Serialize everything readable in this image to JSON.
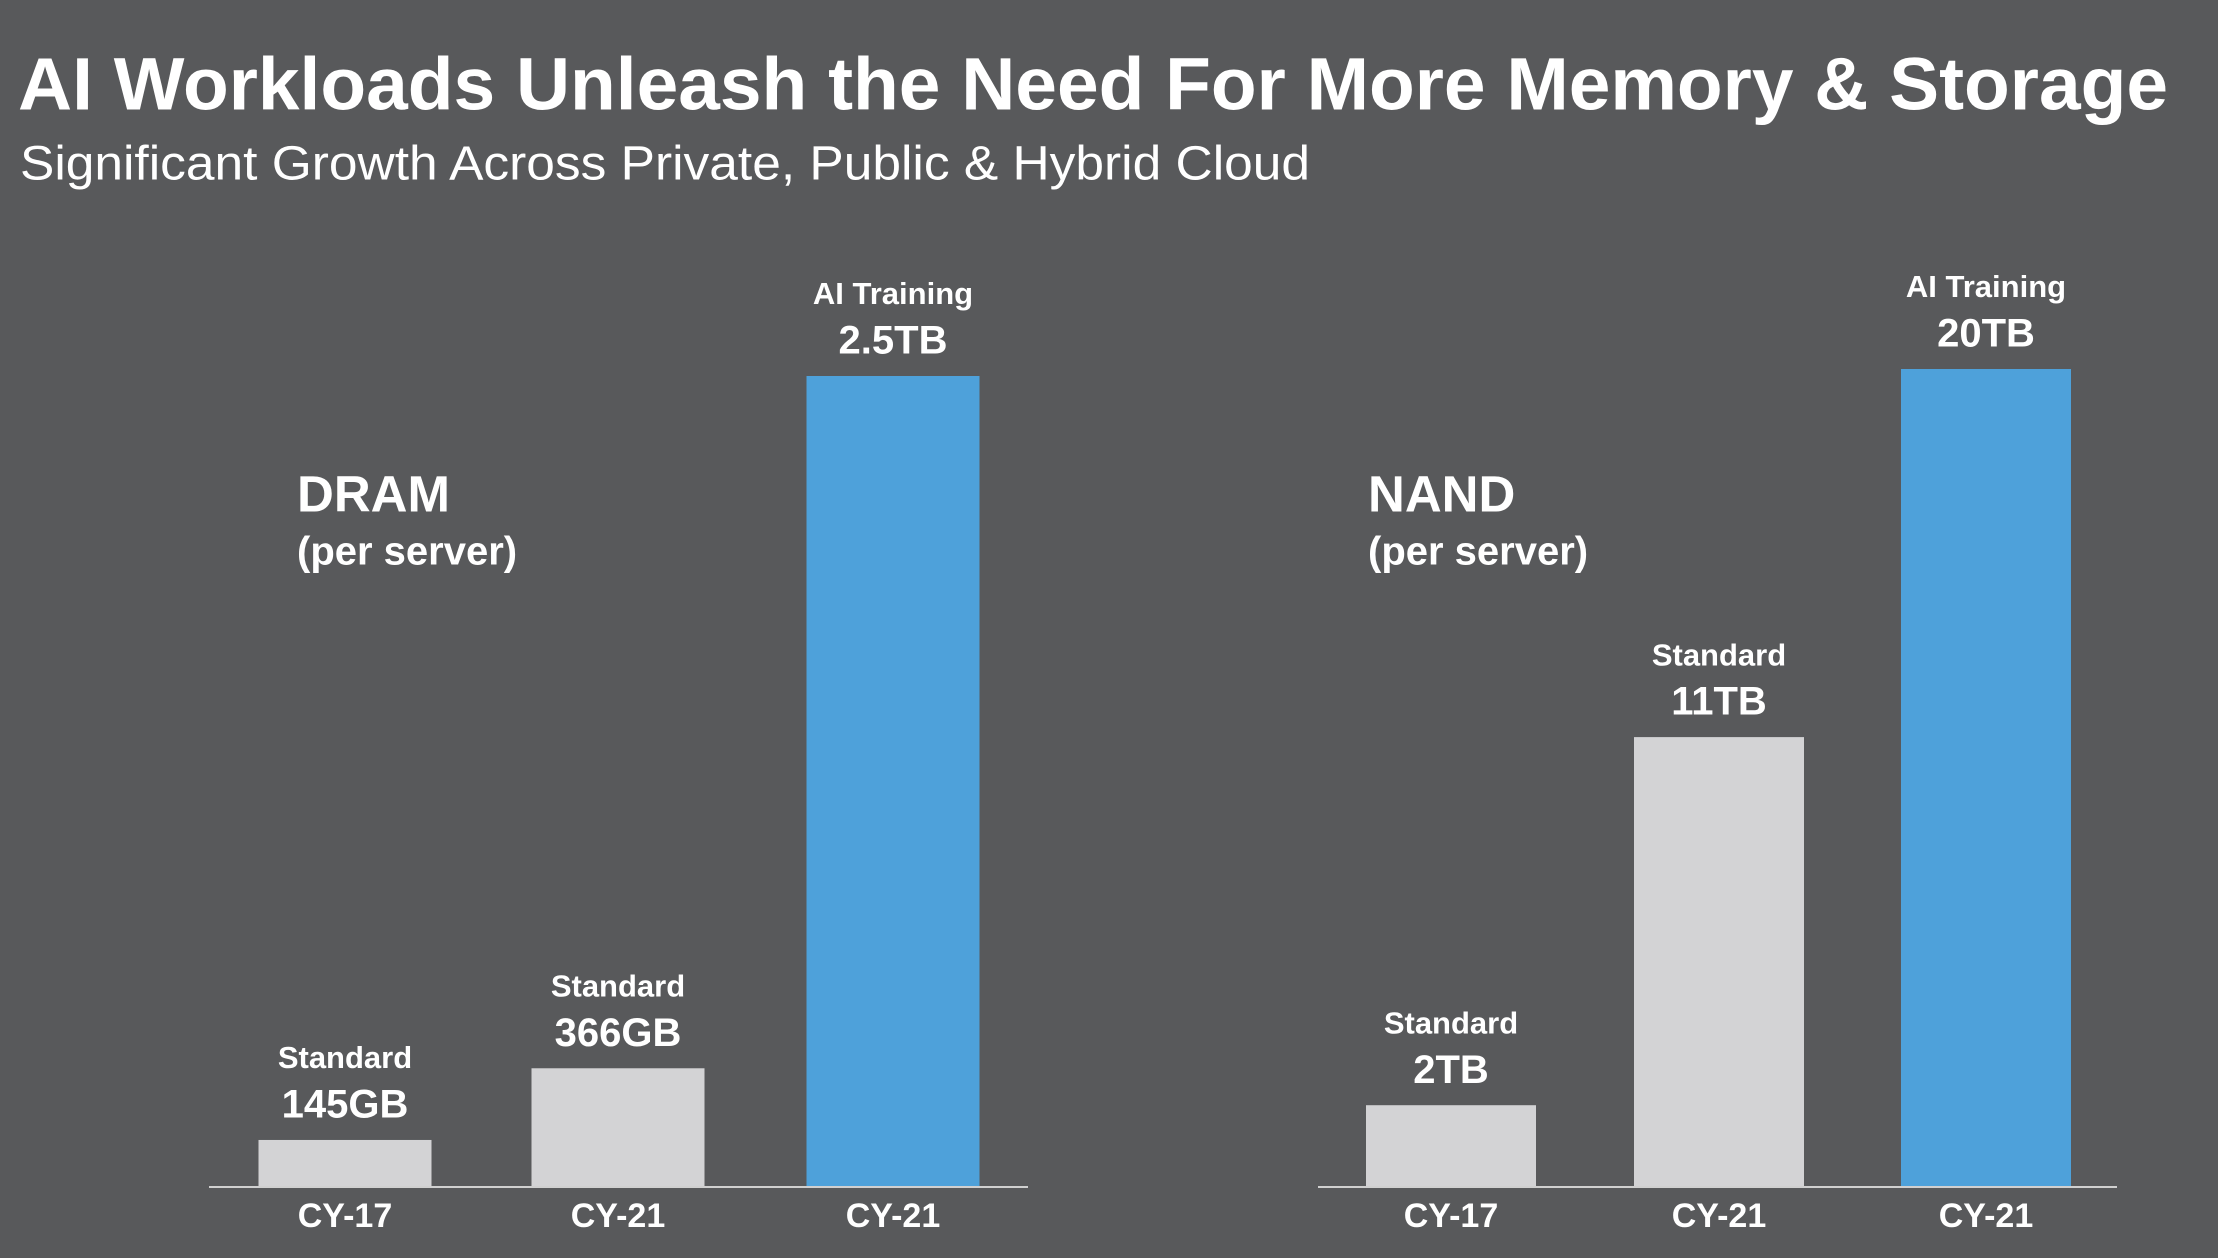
{
  "title": "AI Workloads Unleash the Need For More Memory & Storage",
  "subtitle": "Significant Growth Across Private, Public & Hybrid Cloud",
  "chart_data": [
    {
      "type": "bar",
      "title": "DRAM",
      "subtitle": "(per server)",
      "categories": [
        "CY-17",
        "CY-21",
        "CY-21"
      ],
      "bar_labels": [
        "Standard",
        "Standard",
        "AI Training"
      ],
      "values": [
        145,
        366,
        2500
      ],
      "value_labels": [
        "145GB",
        "366GB",
        "2.5TB"
      ],
      "colors": [
        "#d3d3d5",
        "#d3d3d5",
        "#4ea1da"
      ]
    },
    {
      "type": "bar",
      "title": "NAND",
      "subtitle": "(per server)",
      "categories": [
        "CY-17",
        "CY-21",
        "CY-21"
      ],
      "bar_labels": [
        "Standard",
        "Standard",
        "AI Training"
      ],
      "values": [
        2,
        11,
        20
      ],
      "value_labels": [
        "2TB",
        "11TB",
        "20TB"
      ],
      "colors": [
        "#d3d3d5",
        "#d3d3d5",
        "#4ea1da"
      ]
    }
  ]
}
